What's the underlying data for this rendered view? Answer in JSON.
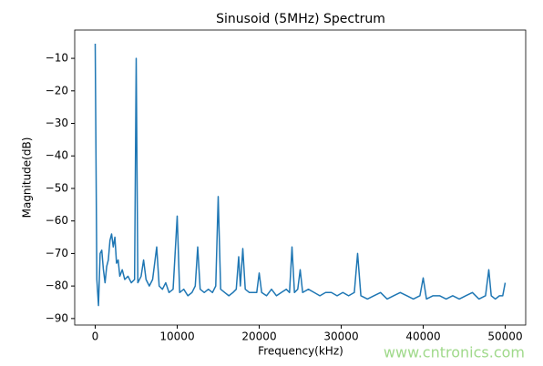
{
  "chart_data": {
    "type": "line",
    "title": "Sinusoid (5MHz) Spectrum",
    "x_label": "Frequency(kHz)",
    "y_label": "Magnitude(dB)",
    "watermark": "www.cntronics.com",
    "x": [
      0,
      200,
      400,
      600,
      800,
      1000,
      1200,
      1400,
      1600,
      1800,
      2000,
      2200,
      2400,
      2600,
      2800,
      3000,
      3300,
      3600,
      4000,
      4400,
      4800,
      5000,
      5200,
      5600,
      5900,
      6200,
      6600,
      7000,
      7500,
      7800,
      8200,
      8600,
      9000,
      9500,
      10000,
      10300,
      10800,
      11300,
      11800,
      12200,
      12500,
      12800,
      13300,
      13800,
      14300,
      14700,
      15000,
      15300,
      15800,
      16300,
      16800,
      17200,
      17500,
      17700,
      18000,
      18300,
      18800,
      19300,
      19700,
      20000,
      20300,
      20900,
      21500,
      22100,
      22700,
      23300,
      23700,
      24000,
      24300,
      24700,
      25000,
      25300,
      26000,
      26700,
      27400,
      28100,
      28800,
      29500,
      30200,
      30900,
      31600,
      32000,
      32400,
      33200,
      34000,
      34800,
      35600,
      36400,
      37200,
      38000,
      38800,
      39600,
      40000,
      40400,
      41200,
      42000,
      42800,
      43600,
      44400,
      45200,
      46000,
      46800,
      47600,
      48000,
      48300,
      48800,
      49300,
      49700,
      50000
    ],
    "series": [
      {
        "name": "spectrum",
        "color": "#1f77b4",
        "values": [
          -5.5,
          -78,
          -86,
          -70,
          -69,
          -75,
          -79,
          -74,
          -72,
          -66,
          -64,
          -68,
          -65,
          -73,
          -72,
          -77,
          -75,
          -78,
          -77,
          -79,
          -78,
          -10,
          -79,
          -77,
          -72,
          -78,
          -80,
          -78,
          -68,
          -80,
          -81,
          -79,
          -82,
          -81,
          -58.5,
          -82,
          -81,
          -83,
          -82,
          -80,
          -68,
          -81,
          -82,
          -81,
          -82,
          -80,
          -52.5,
          -81,
          -82,
          -83,
          -82,
          -81,
          -71,
          -80,
          -68.5,
          -81,
          -82,
          -82,
          -82,
          -76,
          -82,
          -83,
          -81,
          -83,
          -82,
          -81,
          -82,
          -68,
          -82,
          -81,
          -75,
          -82,
          -81,
          -82,
          -83,
          -82,
          -82,
          -83,
          -82,
          -83,
          -82,
          -70,
          -83,
          -84,
          -83,
          -82,
          -84,
          -83,
          -82,
          -83,
          -84,
          -83,
          -77.5,
          -84,
          -83,
          -83,
          -84,
          -83,
          -84,
          -83,
          -82,
          -84,
          -83,
          -75,
          -83,
          -84,
          -83,
          -83,
          -79
        ]
      }
    ],
    "xlim": [
      -2500,
      52500
    ],
    "ylim": [
      -92,
      -1.3
    ],
    "xticks": [
      0,
      10000,
      20000,
      30000,
      40000,
      50000
    ],
    "yticks": [
      {
        "value": -90,
        "label": "−90"
      },
      {
        "value": -80,
        "label": "−80"
      },
      {
        "value": -70,
        "label": "−70"
      },
      {
        "value": -60,
        "label": "−60"
      },
      {
        "value": -50,
        "label": "−50"
      },
      {
        "value": -40,
        "label": "−40"
      },
      {
        "value": -30,
        "label": "−30"
      },
      {
        "value": -20,
        "label": "−20"
      },
      {
        "value": -10,
        "label": "−10"
      }
    ],
    "grid": false
  }
}
